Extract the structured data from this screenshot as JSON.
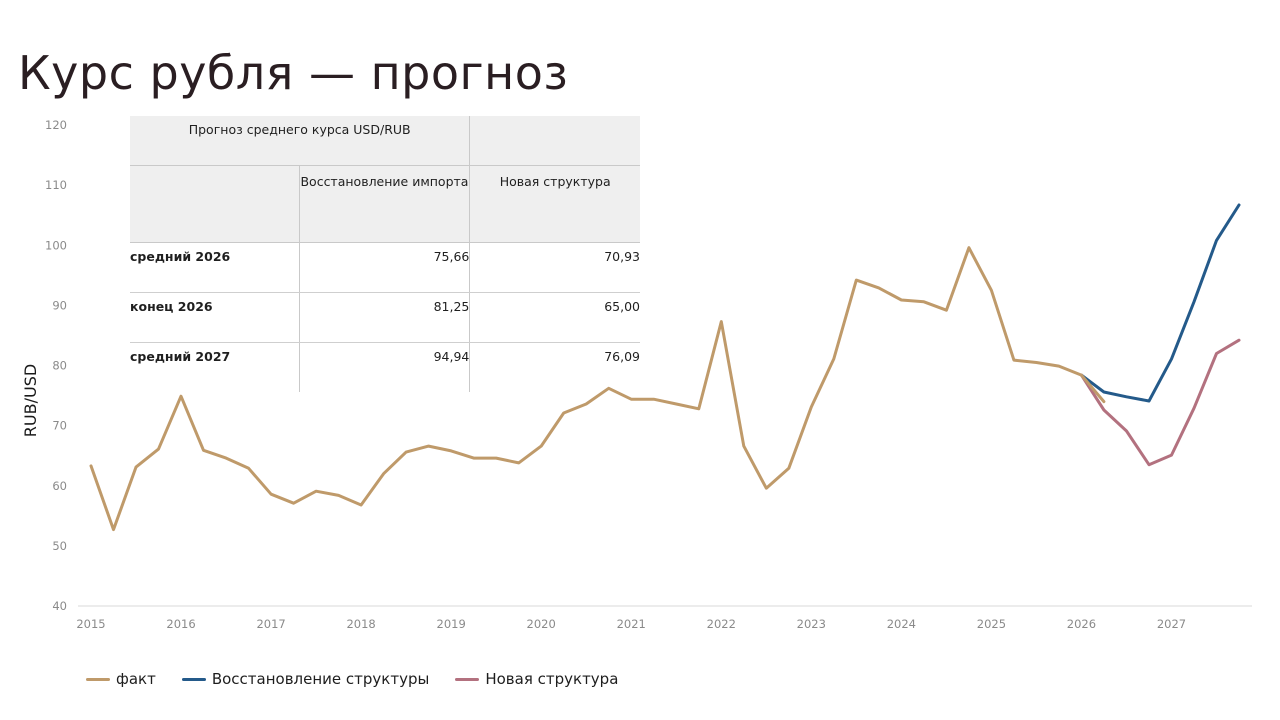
{
  "page": {
    "title": "Курс рубля — прогноз"
  },
  "table": {
    "header": "Прогноз среднего курса USD/RUB",
    "columns": [
      "Восстановление импорта",
      "Новая структура"
    ],
    "rows": [
      {
        "label": "средний 2026",
        "values": [
          "75,66",
          "70,93"
        ]
      },
      {
        "label": "конец 2026",
        "values": [
          "81,25",
          "65,00"
        ]
      },
      {
        "label": "средний 2027",
        "values": [
          "94,94",
          "76,09"
        ]
      }
    ]
  },
  "chart_data": {
    "type": "line",
    "title": "Курс рубля — прогноз",
    "ylabel": "RUB/USD",
    "xlabel": "",
    "ylim": [
      40,
      120
    ],
    "yticks": [
      40,
      50,
      60,
      70,
      80,
      90,
      100,
      110,
      120
    ],
    "xlim": [
      2015,
      2027.9
    ],
    "xticks": [
      "2015",
      "2016",
      "2017",
      "2018",
      "2019",
      "2020",
      "2021",
      "2022",
      "2023",
      "2024",
      "2025",
      "2026",
      "2027"
    ],
    "grid": false,
    "legend_position": "bottom-left",
    "series": [
      {
        "name": "факт",
        "color": "#bf9a6a",
        "points": [
          [
            2015.0,
            63.3
          ],
          [
            2015.25,
            52.7
          ],
          [
            2015.5,
            63.1
          ],
          [
            2015.75,
            66.1
          ],
          [
            2016.0,
            74.9
          ],
          [
            2016.25,
            65.9
          ],
          [
            2016.5,
            64.6
          ],
          [
            2016.75,
            62.9
          ],
          [
            2017.0,
            58.6
          ],
          [
            2017.25,
            57.1
          ],
          [
            2017.5,
            59.1
          ],
          [
            2017.75,
            58.4
          ],
          [
            2018.0,
            56.8
          ],
          [
            2018.25,
            62.0
          ],
          [
            2018.5,
            65.6
          ],
          [
            2018.75,
            66.6
          ],
          [
            2019.0,
            65.8
          ],
          [
            2019.25,
            64.6
          ],
          [
            2019.5,
            64.6
          ],
          [
            2019.75,
            63.8
          ],
          [
            2020.0,
            66.6
          ],
          [
            2020.25,
            72.1
          ],
          [
            2020.5,
            73.6
          ],
          [
            2020.75,
            76.2
          ],
          [
            2021.0,
            74.4
          ],
          [
            2021.25,
            74.4
          ],
          [
            2021.5,
            73.6
          ],
          [
            2021.75,
            72.8
          ],
          [
            2022.0,
            87.3
          ],
          [
            2022.25,
            66.6
          ],
          [
            2022.5,
            59.6
          ],
          [
            2022.75,
            62.9
          ],
          [
            2023.0,
            73.1
          ],
          [
            2023.25,
            81.1
          ],
          [
            2023.5,
            94.2
          ],
          [
            2023.75,
            92.9
          ],
          [
            2024.0,
            90.9
          ],
          [
            2024.25,
            90.6
          ],
          [
            2024.5,
            89.2
          ],
          [
            2024.75,
            99.6
          ],
          [
            2025.0,
            92.5
          ],
          [
            2025.25,
            80.9
          ],
          [
            2025.5,
            80.5
          ],
          [
            2025.75,
            79.9
          ],
          [
            2026.0,
            78.4
          ],
          [
            2026.25,
            74.0
          ]
        ]
      },
      {
        "name": "Восстановление структуры",
        "color": "#245a8a",
        "points": [
          [
            2026.0,
            78.4
          ],
          [
            2026.25,
            75.6
          ],
          [
            2026.5,
            74.8
          ],
          [
            2026.75,
            74.1
          ],
          [
            2027.0,
            81.1
          ],
          [
            2027.25,
            90.6
          ],
          [
            2027.5,
            100.8
          ],
          [
            2027.75,
            106.7
          ]
        ]
      },
      {
        "name": "Новая структура",
        "color": "#b3717f",
        "points": [
          [
            2026.0,
            78.4
          ],
          [
            2026.25,
            72.6
          ],
          [
            2026.5,
            69.1
          ],
          [
            2026.75,
            63.5
          ],
          [
            2027.0,
            65.1
          ],
          [
            2027.25,
            72.9
          ],
          [
            2027.5,
            82.0
          ],
          [
            2027.75,
            84.2
          ]
        ]
      }
    ]
  }
}
